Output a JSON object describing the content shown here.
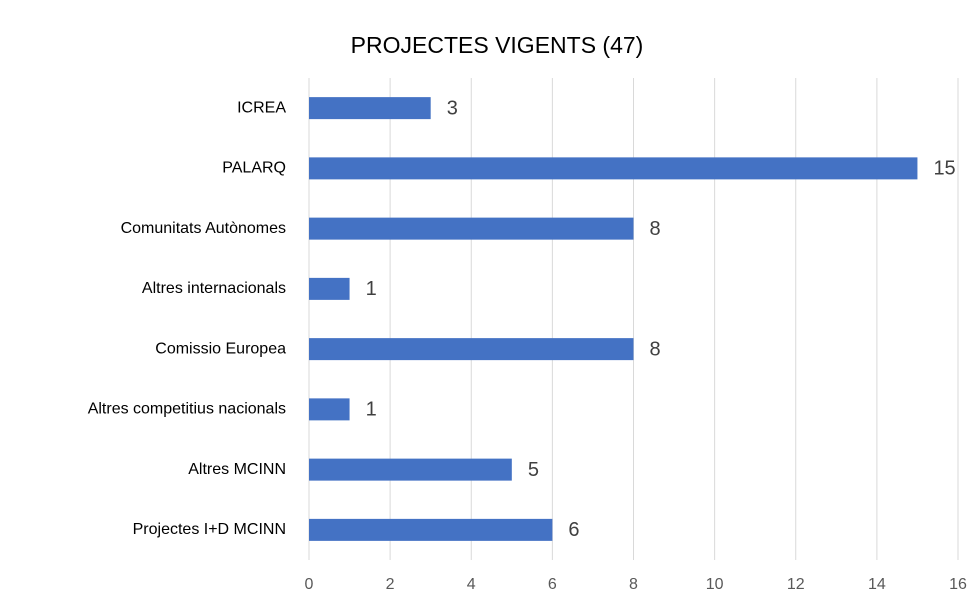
{
  "chart_data": {
    "type": "bar",
    "orientation": "horizontal",
    "title": "PROJECTES VIGENTS (47)",
    "categories": [
      "ICREA",
      "PALARQ",
      "Comunitats Autònomes",
      "Altres internacionals",
      "Comissio Europea",
      "Altres competitius nacionals",
      "Altres MCINN",
      "Projectes I+D MCINN"
    ],
    "values": [
      3,
      15,
      8,
      1,
      8,
      1,
      5,
      6
    ],
    "color": "#4472c4",
    "xlim": [
      0,
      16
    ],
    "xticks": [
      0,
      2,
      4,
      6,
      8,
      10,
      12,
      14,
      16
    ],
    "grid": true
  }
}
